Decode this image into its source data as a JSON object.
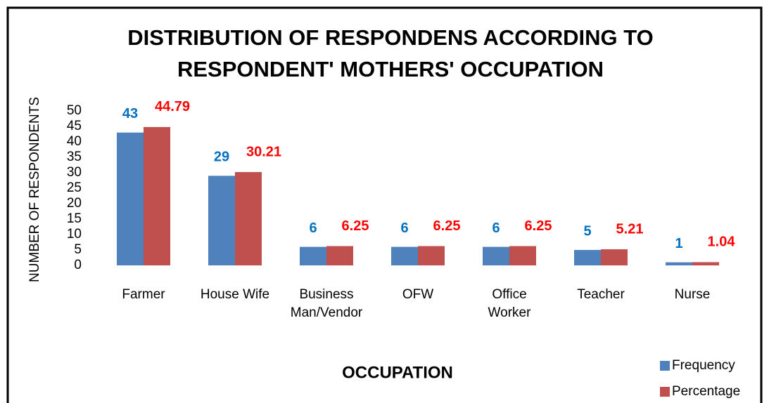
{
  "chart_data": {
    "type": "bar",
    "title": [
      "DISTRIBUTION OF RESPONDENS ACCORDING TO",
      "RESPONDENT' MOTHERS' OCCUPATION"
    ],
    "x_label": "OCCUPATION",
    "y_label": "NUMBER OF RESPONDENTS",
    "categories": [
      [
        "Farmer"
      ],
      [
        "House Wife"
      ],
      [
        "Business",
        "Man/Vendor"
      ],
      [
        "OFW"
      ],
      [
        "Office",
        "Worker"
      ],
      [
        "Teacher"
      ],
      [
        "Nurse"
      ]
    ],
    "series": [
      {
        "name": "Frequency",
        "color": "#4f81bd",
        "label_color": "#0070c0",
        "values": [
          43,
          29,
          6,
          6,
          6,
          5,
          1
        ]
      },
      {
        "name": "Percentage",
        "color": "#c0504d",
        "label_color": "#ff0000",
        "values": [
          44.79,
          30.21,
          6.25,
          6.25,
          6.25,
          5.21,
          1.04
        ]
      }
    ],
    "ylim": [
      0,
      50
    ],
    "yticks": [
      0,
      5,
      10,
      15,
      20,
      25,
      30,
      35,
      40,
      45,
      50
    ],
    "grid": false,
    "legend": "bottom-right"
  }
}
